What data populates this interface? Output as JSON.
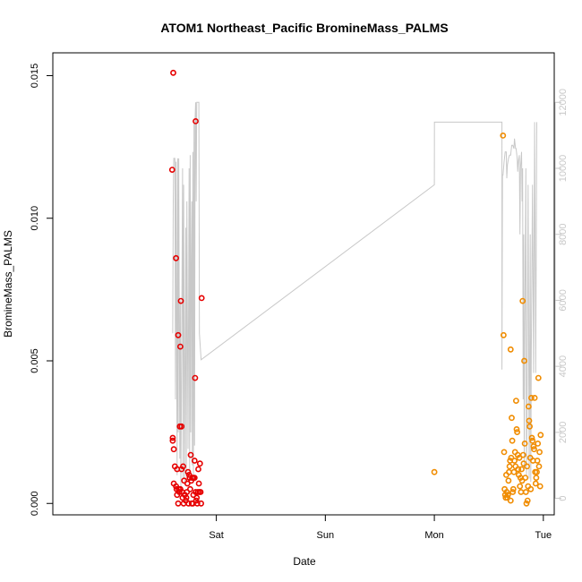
{
  "chart_data": {
    "type": "scatter",
    "title": "ATOM1 Northeast_Pacific BromineMass_PALMS",
    "xlabel": "Date",
    "ylabel": "BromineMass_PALMS",
    "x_ticks": [
      {
        "label": "Sat",
        "value": 1
      },
      {
        "label": "Sun",
        "value": 2
      },
      {
        "label": "Mon",
        "value": 3
      },
      {
        "label": "Tue",
        "value": 4
      }
    ],
    "xlim": [
      -0.5,
      4.1
    ],
    "ylim": [
      -0.0004,
      0.0158
    ],
    "y_ticks": [
      0.0,
      0.005,
      0.01,
      0.015
    ],
    "y_tick_labels": [
      "0.000",
      "0.005",
      "0.010",
      "0.015"
    ],
    "y2_ticks": [
      0,
      2000,
      4000,
      6000,
      8000,
      10000,
      12000
    ],
    "y2lim": [
      -500,
      13500
    ],
    "y2_color": "#c8c8c8",
    "series": [
      {
        "color": "#e60000",
        "marker": "circle-open",
        "points": [
          [
            0.605,
            0.0151
          ],
          [
            0.595,
            0.0117
          ],
          [
            0.6,
            0.0023
          ],
          [
            0.6,
            0.0022
          ],
          [
            0.61,
            0.0019
          ],
          [
            0.61,
            0.0007
          ],
          [
            0.62,
            0.0013
          ],
          [
            0.63,
            0.0086
          ],
          [
            0.63,
            0.0006
          ],
          [
            0.635,
            0.0005
          ],
          [
            0.64,
            0.0003
          ],
          [
            0.64,
            0.0012
          ],
          [
            0.65,
            0.0059
          ],
          [
            0.65,
            0.0
          ],
          [
            0.655,
            0.0005
          ],
          [
            0.66,
            0.0004
          ],
          [
            0.665,
            0.0027
          ],
          [
            0.67,
            0.0055
          ],
          [
            0.67,
            0.0005
          ],
          [
            0.675,
            0.0071
          ],
          [
            0.68,
            0.0027
          ],
          [
            0.68,
            0.0012
          ],
          [
            0.685,
            0.0004
          ],
          [
            0.69,
            0.0002
          ],
          [
            0.695,
            0.0013
          ],
          [
            0.7,
            0.0
          ],
          [
            0.705,
            0.0008
          ],
          [
            0.71,
            0.0003
          ],
          [
            0.72,
            0.0001
          ],
          [
            0.725,
            0.0002
          ],
          [
            0.73,
            0.0004
          ],
          [
            0.735,
            0.0007
          ],
          [
            0.74,
            0.0011
          ],
          [
            0.745,
            0.0
          ],
          [
            0.75,
            0.001
          ],
          [
            0.755,
            0.0009
          ],
          [
            0.76,
            0.0005
          ],
          [
            0.765,
            0.0017
          ],
          [
            0.77,
            0.0008
          ],
          [
            0.775,
            0.0
          ],
          [
            0.78,
            0.0009
          ],
          [
            0.785,
            0.0
          ],
          [
            0.79,
            0.0009
          ],
          [
            0.79,
            0.0003
          ],
          [
            0.8,
            0.0015
          ],
          [
            0.8,
            0.0009
          ],
          [
            0.805,
            0.0044
          ],
          [
            0.81,
            0.0134
          ],
          [
            0.81,
            0.0004
          ],
          [
            0.815,
            0.0001
          ],
          [
            0.82,
            0.0002
          ],
          [
            0.825,
            0.0
          ],
          [
            0.83,
            0.0004
          ],
          [
            0.835,
            0.0012
          ],
          [
            0.84,
            0.0007
          ],
          [
            0.845,
            0.0004
          ],
          [
            0.85,
            0.0014
          ],
          [
            0.855,
            0.0004
          ],
          [
            0.86,
            0.0
          ],
          [
            0.865,
            0.0072
          ]
        ]
      },
      {
        "color": "#f08c00",
        "marker": "circle-open",
        "points": [
          [
            3.0,
            0.0011
          ],
          [
            3.63,
            0.0129
          ],
          [
            3.635,
            0.0059
          ],
          [
            3.64,
            0.0018
          ],
          [
            3.645,
            0.0005
          ],
          [
            3.65,
            0.0003
          ],
          [
            3.655,
            0.0002
          ],
          [
            3.66,
            0.001
          ],
          [
            3.665,
            0.0004
          ],
          [
            3.67,
            0.0002
          ],
          [
            3.675,
            0.0003
          ],
          [
            3.68,
            0.0008
          ],
          [
            3.685,
            0.0011
          ],
          [
            3.69,
            0.0013
          ],
          [
            3.695,
            0.0015
          ],
          [
            3.7,
            0.0001
          ],
          [
            3.7,
            0.0054
          ],
          [
            3.705,
            0.0016
          ],
          [
            3.71,
            0.003
          ],
          [
            3.715,
            0.0022
          ],
          [
            3.72,
            0.0004
          ],
          [
            3.725,
            0.0005
          ],
          [
            3.73,
            0.0011
          ],
          [
            3.735,
            0.0015
          ],
          [
            3.74,
            0.0018
          ],
          [
            3.745,
            0.0013
          ],
          [
            3.75,
            0.0036
          ],
          [
            3.755,
            0.0026
          ],
          [
            3.76,
            0.0025
          ],
          [
            3.765,
            0.0017
          ],
          [
            3.77,
            0.0012
          ],
          [
            3.775,
            0.001
          ],
          [
            3.78,
            0.0016
          ],
          [
            3.785,
            0.0006
          ],
          [
            3.79,
            0.0009
          ],
          [
            3.795,
            0.0004
          ],
          [
            3.8,
            0.0012
          ],
          [
            3.805,
            0.0008
          ],
          [
            3.81,
            0.0071
          ],
          [
            3.815,
            0.0017
          ],
          [
            3.82,
            0.0014
          ],
          [
            3.825,
            0.005
          ],
          [
            3.83,
            0.0021
          ],
          [
            3.835,
            0.0009
          ],
          [
            3.84,
            0.0004
          ],
          [
            3.845,
            0.0
          ],
          [
            3.85,
            0.0013
          ],
          [
            3.855,
            0.0001
          ],
          [
            3.86,
            0.0006
          ],
          [
            3.865,
            0.0034
          ],
          [
            3.87,
            0.0029
          ],
          [
            3.875,
            0.0027
          ],
          [
            3.88,
            0.0016
          ],
          [
            3.885,
            0.0005
          ],
          [
            3.89,
            0.0037
          ],
          [
            3.895,
            0.0023
          ],
          [
            3.9,
            0.0022
          ],
          [
            3.905,
            0.0015
          ],
          [
            3.91,
            0.002
          ],
          [
            3.915,
            0.0019
          ],
          [
            3.92,
            0.0037
          ],
          [
            3.925,
            0.0011
          ],
          [
            3.93,
            0.0007
          ],
          [
            3.935,
            0.0009
          ],
          [
            3.94,
            0.0011
          ],
          [
            3.945,
            0.0015
          ],
          [
            3.95,
            0.0021
          ],
          [
            3.955,
            0.0044
          ],
          [
            3.96,
            0.0013
          ],
          [
            3.965,
            0.0018
          ],
          [
            3.97,
            0.0006
          ],
          [
            3.975,
            0.0024
          ]
        ]
      }
    ],
    "secondary_line": {
      "color": "#c8c8c8",
      "axis": "right",
      "points": [
        [
          0.6,
          5000
        ],
        [
          0.605,
          9000
        ],
        [
          0.61,
          10300
        ],
        [
          0.62,
          10300
        ],
        [
          0.625,
          3000
        ],
        [
          0.63,
          10200
        ],
        [
          0.64,
          700
        ],
        [
          0.645,
          10300
        ],
        [
          0.65,
          2000
        ],
        [
          0.655,
          10300
        ],
        [
          0.665,
          1200
        ],
        [
          0.67,
          6000
        ],
        [
          0.675,
          200
        ],
        [
          0.68,
          3500
        ],
        [
          0.69,
          10000
        ],
        [
          0.695,
          600
        ],
        [
          0.7,
          9500
        ],
        [
          0.71,
          500
        ],
        [
          0.72,
          8200
        ],
        [
          0.725,
          700
        ],
        [
          0.73,
          9000
        ],
        [
          0.74,
          1500
        ],
        [
          0.75,
          10000
        ],
        [
          0.755,
          800
        ],
        [
          0.76,
          10400
        ],
        [
          0.765,
          2000
        ],
        [
          0.77,
          7000
        ],
        [
          0.775,
          9000
        ],
        [
          0.78,
          1000
        ],
        [
          0.785,
          10500
        ],
        [
          0.79,
          600
        ],
        [
          0.795,
          11400
        ],
        [
          0.8,
          1600
        ],
        [
          0.805,
          11500
        ],
        [
          0.81,
          12000
        ],
        [
          0.815,
          9000
        ],
        [
          0.82,
          12000
        ],
        [
          0.84,
          12000
        ],
        [
          0.845,
          5000
        ],
        [
          0.86,
          4200
        ],
        [
          3.0,
          9500
        ],
        [
          3.001,
          11400
        ],
        [
          3.62,
          11400
        ],
        [
          3.62,
          3900
        ],
        [
          3.625,
          9800
        ],
        [
          3.63,
          9800
        ],
        [
          3.64,
          10200
        ],
        [
          3.65,
          10500
        ],
        [
          3.66,
          10500
        ],
        [
          3.665,
          9700
        ],
        [
          3.67,
          10100
        ],
        [
          3.68,
          10300
        ],
        [
          3.69,
          10400
        ],
        [
          3.7,
          10400
        ],
        [
          3.71,
          10700
        ],
        [
          3.72,
          10700
        ],
        [
          3.73,
          10600
        ],
        [
          3.735,
          10900
        ],
        [
          3.745,
          10600
        ],
        [
          3.75,
          10600
        ],
        [
          3.76,
          10300
        ],
        [
          3.765,
          9900
        ],
        [
          3.77,
          10200
        ],
        [
          3.78,
          10400
        ],
        [
          3.785,
          8000
        ],
        [
          3.79,
          10000
        ],
        [
          3.8,
          10500
        ],
        [
          3.805,
          9000
        ],
        [
          3.81,
          10000
        ],
        [
          3.815,
          3000
        ],
        [
          3.82,
          8000
        ],
        [
          3.825,
          900
        ],
        [
          3.83,
          5000
        ],
        [
          3.84,
          10000
        ],
        [
          3.845,
          700
        ],
        [
          3.85,
          2500
        ],
        [
          3.86,
          9500
        ],
        [
          3.87,
          600
        ],
        [
          3.88,
          8000
        ],
        [
          3.885,
          500
        ],
        [
          3.89,
          4500
        ],
        [
          3.9,
          9500
        ],
        [
          3.91,
          3800
        ],
        [
          3.92,
          11400
        ],
        [
          3.93,
          3800
        ],
        [
          3.94,
          11400
        ]
      ]
    }
  }
}
